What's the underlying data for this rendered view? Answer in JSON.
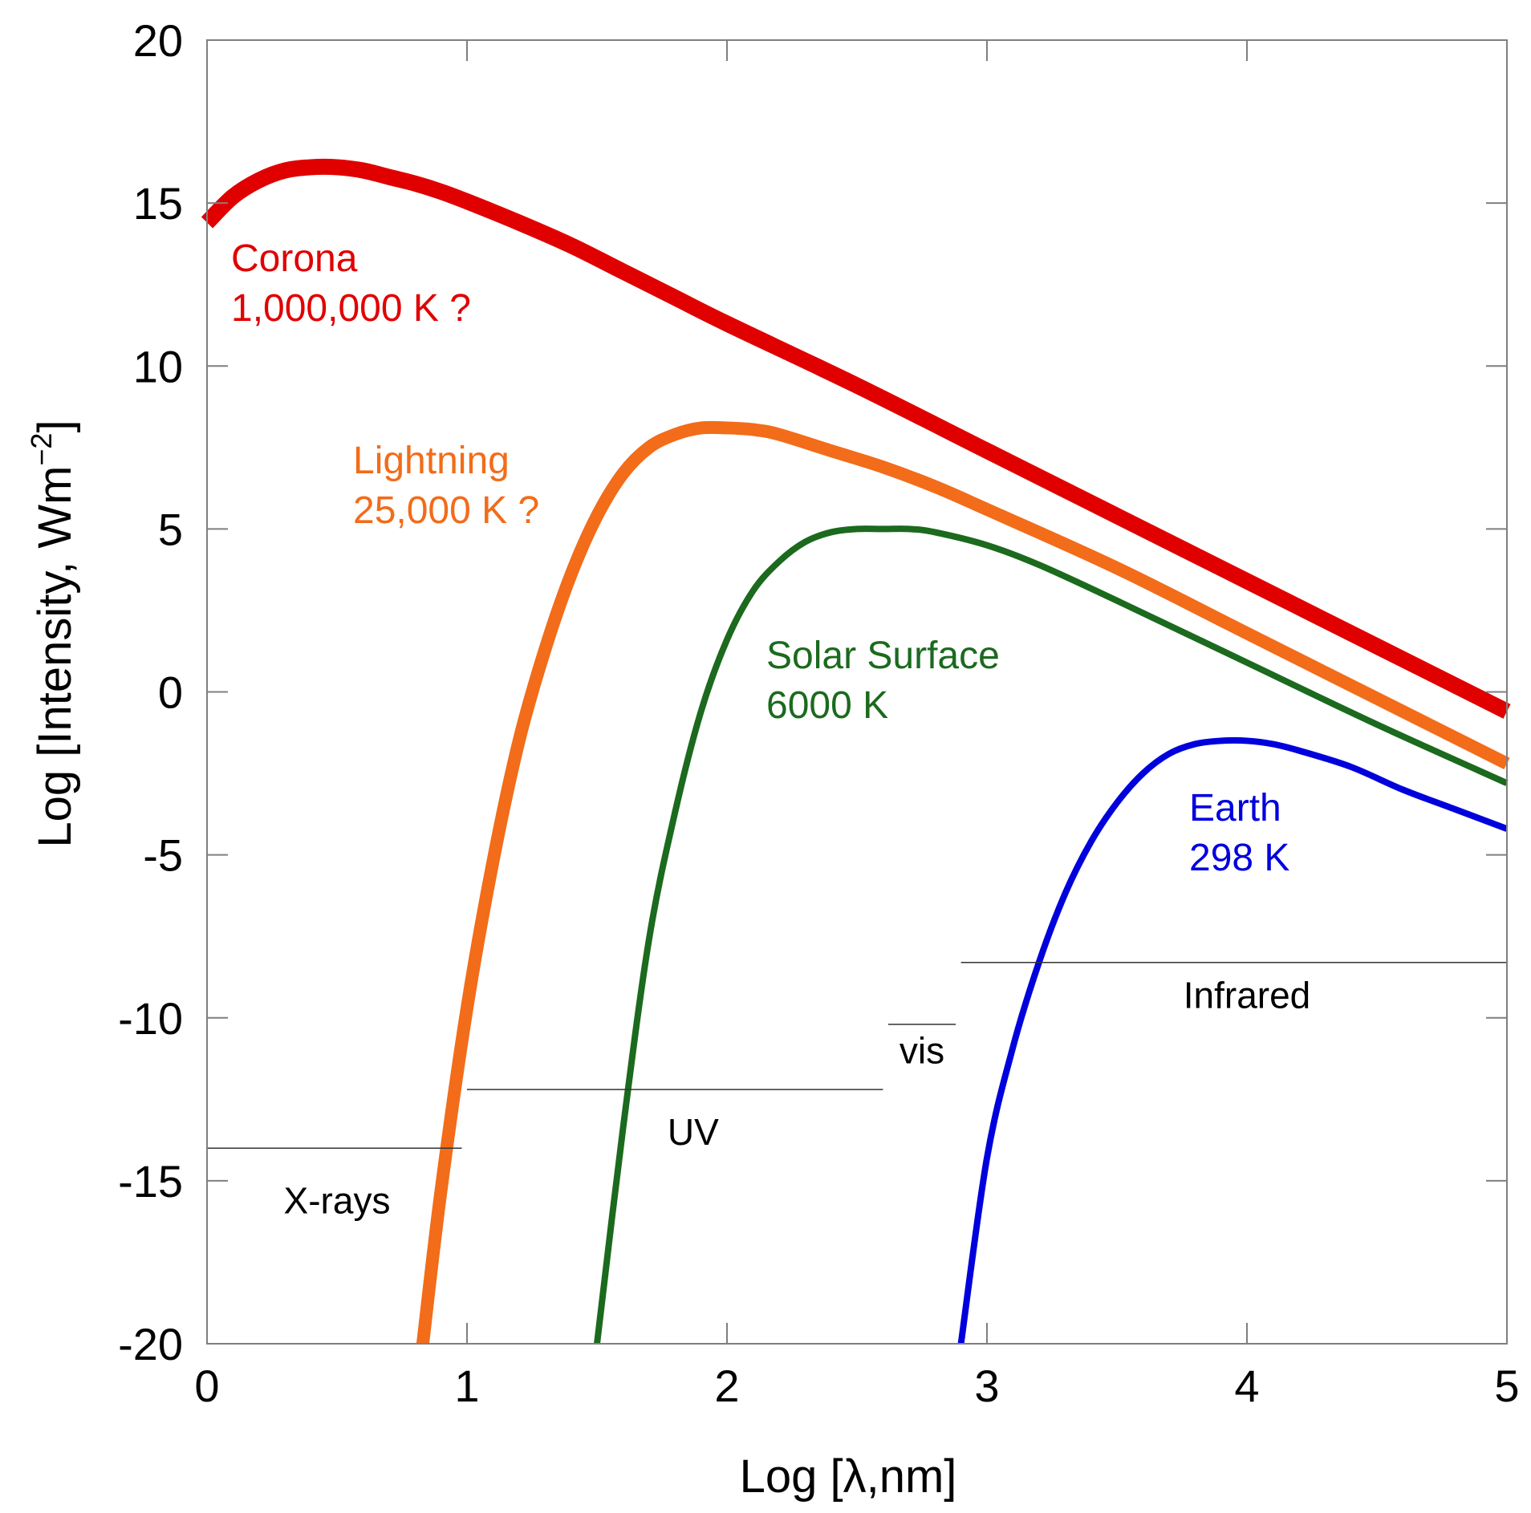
{
  "chart_data": {
    "type": "line",
    "title": "",
    "xlabel": "Log [λ,nm]",
    "ylabel_main": "Log [Intensity, Wm",
    "ylabel_sup": "−2",
    "ylabel_close": "]",
    "xlim": [
      0,
      5
    ],
    "ylim": [
      -20,
      20
    ],
    "grid": false,
    "x_ticks": [
      0,
      1,
      2,
      3,
      4,
      5
    ],
    "x_tick_labels": [
      "0",
      "1",
      "2",
      "3",
      "4",
      "5"
    ],
    "y_ticks": [
      20,
      15,
      10,
      5,
      0,
      -5,
      -10,
      -15,
      -20
    ],
    "y_tick_labels": [
      "20",
      "15",
      "10",
      "5",
      "0",
      "-5",
      "-10",
      "-15",
      "-20"
    ],
    "series": [
      {
        "name": "Corona",
        "label_line1": "Corona",
        "label_line2": "1,000,000 K ?",
        "color": "#E00000",
        "temperature_K": 1000000,
        "x": [
          0,
          0.1,
          0.2,
          0.3,
          0.4,
          0.5,
          0.6,
          0.7,
          0.8,
          0.9,
          1.0,
          1.2,
          1.4,
          1.6,
          1.8,
          2.0,
          2.5,
          3.0,
          3.5,
          4.0,
          4.5,
          5.0
        ],
        "y": [
          14.4,
          15.2,
          15.7,
          16.0,
          16.1,
          16.1,
          16.0,
          15.8,
          15.6,
          15.35,
          15.05,
          14.4,
          13.7,
          12.9,
          12.1,
          11.3,
          9.4,
          7.4,
          5.4,
          3.4,
          1.4,
          -0.6
        ]
      },
      {
        "name": "Lightning",
        "label_line1": "Lightning",
        "label_line2": "25,000 K ?",
        "color": "#F26C1A",
        "temperature_K": 25000,
        "x": [
          0.83,
          0.9,
          1.0,
          1.1,
          1.2,
          1.3,
          1.4,
          1.5,
          1.6,
          1.7,
          1.8,
          1.9,
          2.0,
          2.1,
          2.2,
          2.4,
          2.6,
          2.8,
          3.0,
          3.5,
          4.0,
          4.5,
          5.0
        ],
        "y": [
          -20.0,
          -15.3,
          -9.7,
          -5.2,
          -1.5,
          1.3,
          3.6,
          5.4,
          6.7,
          7.5,
          7.9,
          8.1,
          8.1,
          8.05,
          7.9,
          7.4,
          6.9,
          6.3,
          5.6,
          3.8,
          1.8,
          -0.2,
          -2.2
        ]
      },
      {
        "name": "Solar Surface",
        "label_line1": "Solar Surface",
        "label_line2": "6000 K",
        "color": "#1B6A1E",
        "temperature_K": 6000,
        "x": [
          1.5,
          1.6,
          1.7,
          1.8,
          1.9,
          2.0,
          2.1,
          2.2,
          2.3,
          2.4,
          2.5,
          2.6,
          2.7,
          2.8,
          3.0,
          3.2,
          3.5,
          4.0,
          4.5,
          5.0
        ],
        "y": [
          -20.0,
          -13.4,
          -7.6,
          -3.7,
          -0.6,
          1.6,
          3.1,
          4.0,
          4.6,
          4.9,
          5.0,
          5.0,
          5.0,
          4.9,
          4.5,
          3.9,
          2.8,
          0.9,
          -1.0,
          -2.8
        ]
      },
      {
        "name": "Earth",
        "label_line1": "Earth",
        "label_line2": "298 K",
        "color": "#0000DD",
        "temperature_K": 298,
        "x": [
          2.9,
          3.0,
          3.1,
          3.2,
          3.3,
          3.4,
          3.5,
          3.6,
          3.7,
          3.8,
          3.9,
          4.0,
          4.1,
          4.2,
          4.4,
          4.6,
          4.8,
          5.0
        ],
        "y": [
          -20.0,
          -14.3,
          -10.9,
          -8.3,
          -6.2,
          -4.6,
          -3.4,
          -2.5,
          -1.9,
          -1.6,
          -1.5,
          -1.5,
          -1.6,
          -1.8,
          -2.3,
          -3.0,
          -3.6,
          -4.2
        ]
      }
    ],
    "regions": [
      {
        "name": "X-rays",
        "x_start": 0.0,
        "x_end": 0.98,
        "y": -14.0,
        "label_x": 0.5,
        "label_y": -16.0
      },
      {
        "name": "UV",
        "x_start": 1.0,
        "x_end": 2.6,
        "y": -12.2,
        "label_x": 1.87,
        "label_y": -13.9
      },
      {
        "name": "vis",
        "x_start": 2.62,
        "x_end": 2.88,
        "y": -10.2,
        "label_x": 2.75,
        "label_y": -11.4
      },
      {
        "name": "Infrared",
        "x_start": 2.9,
        "x_end": 5.0,
        "y": -8.3,
        "label_x": 4.0,
        "label_y": -9.7
      }
    ]
  }
}
